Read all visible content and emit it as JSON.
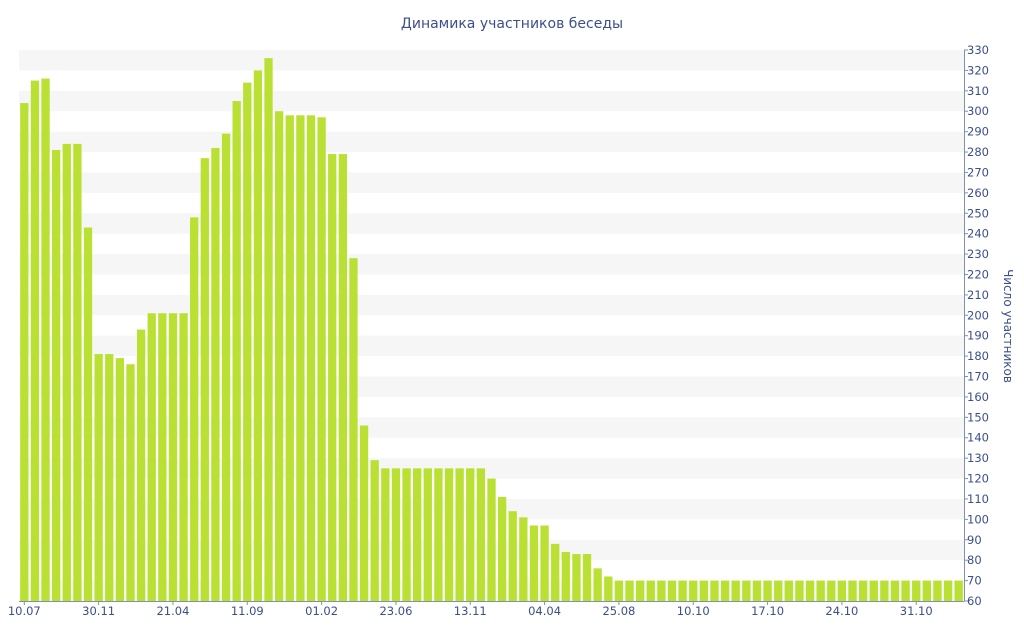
{
  "chart_data": {
    "type": "bar",
    "title": "Динамика участников беседы",
    "xlabel": "",
    "ylabel": "Число участников",
    "ylim": [
      60,
      330
    ],
    "ytick_step": 10,
    "grid": "alternating horizontal bands",
    "y_axis_side": "right",
    "bar_color": "#b9e032",
    "band_color": "#f6f6f6",
    "x_tick_labels": [
      {
        "index": 0,
        "label": "10.07"
      },
      {
        "index": 7,
        "label": "30.11"
      },
      {
        "index": 14,
        "label": "21.04"
      },
      {
        "index": 21,
        "label": "11.09"
      },
      {
        "index": 28,
        "label": "01.02"
      },
      {
        "index": 35,
        "label": "23.06"
      },
      {
        "index": 42,
        "label": "13.11"
      },
      {
        "index": 49,
        "label": "04.04"
      },
      {
        "index": 56,
        "label": "25.08"
      },
      {
        "index": 63,
        "label": "10.10"
      },
      {
        "index": 70,
        "label": "17.10"
      },
      {
        "index": 77,
        "label": "24.10"
      },
      {
        "index": 84,
        "label": "31.10"
      }
    ],
    "values": [
      304,
      315,
      316,
      281,
      284,
      284,
      243,
      181,
      181,
      179,
      176,
      193,
      201,
      201,
      201,
      201,
      248,
      277,
      282,
      289,
      305,
      314,
      320,
      326,
      300,
      298,
      298,
      298,
      297,
      279,
      279,
      228,
      146,
      129,
      125,
      125,
      125,
      125,
      125,
      125,
      125,
      125,
      125,
      125,
      120,
      111,
      104,
      101,
      97,
      97,
      88,
      84,
      83,
      83,
      76,
      72,
      70,
      70,
      70,
      70,
      70,
      70,
      70,
      70,
      70,
      70,
      70,
      70,
      70,
      70,
      70,
      70,
      70,
      70,
      70,
      70,
      70,
      70,
      70,
      70,
      70,
      70,
      70,
      70,
      70,
      70,
      70,
      70,
      70
    ]
  }
}
